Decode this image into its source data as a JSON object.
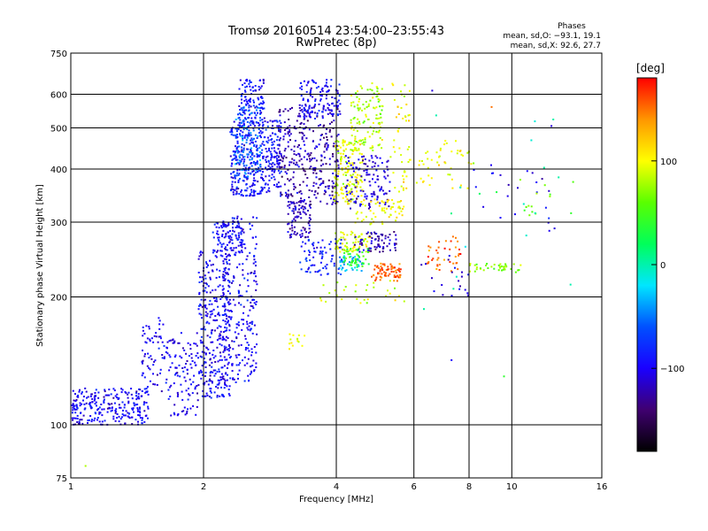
{
  "chart_data": {
    "type": "scatter",
    "title": "Tromsø 20160514 23:54:00–23:55:43",
    "subtitle": "RwPretec (8p)",
    "xlabel": "Frequency [MHz]",
    "ylabel": "Stationary phase Virtual Height [km]",
    "x_scale": "log",
    "y_scale": "log",
    "xlim": [
      1,
      16
    ],
    "ylim": [
      75,
      750
    ],
    "grid": true,
    "x_ticks": [
      1,
      2,
      4,
      6,
      8,
      10,
      16
    ],
    "x_tick_labels": [
      "1",
      "2",
      "4",
      "6",
      "8",
      "10",
      "16"
    ],
    "y_ticks": [
      75,
      100,
      200,
      300,
      400,
      500,
      600,
      750
    ],
    "y_tick_labels": [
      "75",
      "100",
      "200",
      "300",
      "400",
      "500",
      "600",
      "750"
    ],
    "stats": {
      "title": "Phases",
      "line_o": "mean, sd,O: −93.1, 19.1",
      "line_x": "mean, sd,X:  92.6, 27.7"
    },
    "colorbar": {
      "label": "[deg]",
      "range": [
        -180,
        180
      ],
      "ticks": [
        100,
        0,
        -100
      ],
      "tick_labels": [
        "100",
        "0",
        "−100"
      ],
      "colormap": "rainbow",
      "stops": [
        "#000000",
        "#3f0070",
        "#1a00ff",
        "#0050ff",
        "#00e6ff",
        "#00ff5a",
        "#5aff00",
        "#ffff00",
        "#ff9600",
        "#ff0000"
      ]
    },
    "clusters": [
      {
        "f": [
          1.0,
          1.5
        ],
        "h": [
          100,
          122
        ],
        "n": 260,
        "phase": -100
      },
      {
        "f": [
          1.45,
          1.65
        ],
        "h": [
          118,
          180
        ],
        "n": 70,
        "phase": -100
      },
      {
        "f": [
          1.65,
          1.95
        ],
        "h": [
          105,
          165
        ],
        "n": 110,
        "phase": -100
      },
      {
        "f": [
          1.95,
          2.3
        ],
        "h": [
          115,
          260
        ],
        "n": 320,
        "phase": -100
      },
      {
        "f": [
          2.2,
          2.65
        ],
        "h": [
          125,
          310
        ],
        "n": 260,
        "phase": -98
      },
      {
        "f": [
          2.1,
          2.45
        ],
        "h": [
          255,
          300
        ],
        "n": 80,
        "phase": -95
      },
      {
        "f": [
          2.3,
          3.0
        ],
        "h": [
          345,
          520
        ],
        "n": 380,
        "phase": -92
      },
      {
        "f": [
          2.35,
          2.7
        ],
        "h": [
          380,
          560
        ],
        "n": 120,
        "phase": -55
      },
      {
        "f": [
          2.4,
          2.75
        ],
        "h": [
          520,
          650
        ],
        "n": 100,
        "phase": -90
      },
      {
        "f": [
          2.95,
          4.05
        ],
        "h": [
          330,
          560
        ],
        "n": 320,
        "phase": -120
      },
      {
        "f": [
          3.1,
          3.5
        ],
        "h": [
          275,
          340
        ],
        "n": 90,
        "phase": -115
      },
      {
        "f": [
          3.3,
          4.1
        ],
        "h": [
          525,
          650
        ],
        "n": 120,
        "phase": -95
      },
      {
        "f": [
          3.3,
          4.2
        ],
        "h": [
          225,
          275
        ],
        "n": 80,
        "phase": -85
      },
      {
        "f": [
          3.95,
          4.6
        ],
        "h": [
          330,
          470
        ],
        "n": 160,
        "phase": 95
      },
      {
        "f": [
          4.3,
          5.1
        ],
        "h": [
          440,
          640
        ],
        "n": 120,
        "phase": 80
      },
      {
        "f": [
          4.2,
          5.3
        ],
        "h": [
          320,
          430
        ],
        "n": 120,
        "phase": -110
      },
      {
        "f": [
          4.4,
          5.7
        ],
        "h": [
          295,
          340
        ],
        "n": 60,
        "phase": 100
      },
      {
        "f": [
          3.95,
          4.8
        ],
        "h": [
          255,
          285
        ],
        "n": 70,
        "phase": 90
      },
      {
        "f": [
          4.4,
          5.5
        ],
        "h": [
          255,
          285
        ],
        "n": 70,
        "phase": -120
      },
      {
        "f": [
          4.0,
          4.6
        ],
        "h": [
          230,
          250
        ],
        "n": 40,
        "phase": -30
      },
      {
        "f": [
          4.8,
          5.6
        ],
        "h": [
          218,
          240
        ],
        "n": 70,
        "phase": 155
      },
      {
        "f": [
          4.15,
          4.75
        ],
        "h": [
          235,
          260
        ],
        "n": 45,
        "phase": 45
      },
      {
        "f": [
          3.4,
          5.8
        ],
        "h": [
          190,
          220
        ],
        "n": 30,
        "phase": 90
      },
      {
        "f": [
          3.1,
          3.4
        ],
        "h": [
          150,
          165
        ],
        "n": 14,
        "phase": 100
      },
      {
        "f": [
          5.3,
          5.9
        ],
        "h": [
          330,
          640
        ],
        "n": 50,
        "phase": 100
      },
      {
        "f": [
          6.0,
          8.2
        ],
        "h": [
          360,
          470
        ],
        "n": 50,
        "phase": 100
      },
      {
        "f": [
          6.3,
          7.7
        ],
        "h": [
          230,
          280
        ],
        "n": 40,
        "phase": 150
      },
      {
        "f": [
          6.2,
          8.0
        ],
        "h": [
          200,
          250
        ],
        "n": 20,
        "phase": -110
      },
      {
        "f": [
          8.0,
          10.5
        ],
        "h": [
          228,
          240
        ],
        "n": 40,
        "phase": 70
      },
      {
        "f": [
          8.0,
          12.5
        ],
        "h": [
          270,
          420
        ],
        "n": 22,
        "phase": -100
      },
      {
        "f": [
          10.2,
          13.8
        ],
        "h": [
          310,
          380
        ],
        "n": 14,
        "phase": 60
      },
      {
        "f": [
          6.2,
          14.0
        ],
        "h": [
          180,
          640
        ],
        "n": 18,
        "phase": 0
      }
    ],
    "isolated_points": [
      {
        "f": 1.08,
        "h": 80,
        "phase": 80
      },
      {
        "f": 9.6,
        "h": 130,
        "phase": 40
      },
      {
        "f": 7.3,
        "h": 142,
        "phase": -100
      },
      {
        "f": 12.3,
        "h": 505,
        "phase": -110
      },
      {
        "f": 9.0,
        "h": 560,
        "phase": 150
      },
      {
        "f": 6.6,
        "h": 612,
        "phase": -110
      },
      {
        "f": 12.5,
        "h": 290,
        "phase": -110
      }
    ]
  }
}
